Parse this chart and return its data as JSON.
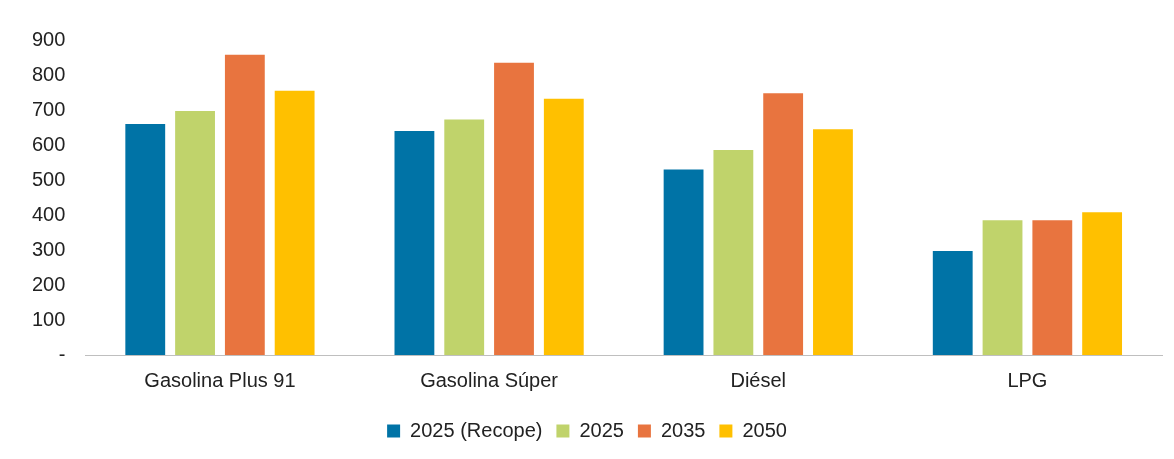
{
  "chart_data": {
    "type": "bar",
    "categories": [
      "Gasolina Plus 91",
      "Gasolina Súper",
      "Diésel",
      "LPG"
    ],
    "series": [
      {
        "name": "2025 (Recope)",
        "color": "#0073a6",
        "values": [
          660,
          640,
          530,
          297
        ]
      },
      {
        "name": "2025",
        "color": "#c0d36b",
        "values": [
          697,
          673,
          586,
          385
        ]
      },
      {
        "name": "2035",
        "color": "#e8743f",
        "values": [
          858,
          835,
          748,
          385
        ]
      },
      {
        "name": "2050",
        "color": "#ffc000",
        "values": [
          755,
          732,
          645,
          408
        ]
      }
    ],
    "ylim": [
      0,
      900
    ],
    "yticks": [
      {
        "value": 0,
        "label": "-"
      },
      100,
      200,
      300,
      400,
      500,
      600,
      700,
      800,
      900
    ],
    "grid": false,
    "legend": "bottom"
  }
}
